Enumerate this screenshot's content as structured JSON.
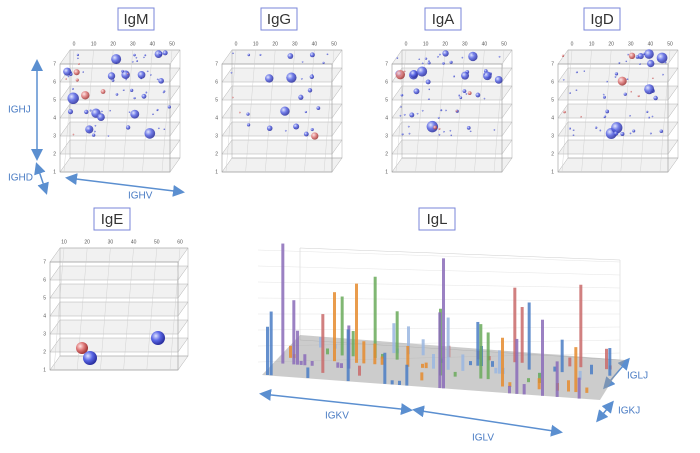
{
  "panels": [
    {
      "title": "IgM",
      "xticks": [
        0,
        10,
        20,
        30,
        40,
        50
      ],
      "zticks": [
        1,
        2,
        3,
        4,
        5,
        6,
        7
      ]
    },
    {
      "title": "IgG",
      "xticks": [
        0,
        10,
        20,
        30,
        40,
        50
      ],
      "zticks": [
        1,
        2,
        3,
        4,
        5,
        6,
        7
      ]
    },
    {
      "title": "IgA",
      "xticks": [
        0,
        10,
        20,
        30,
        40,
        50
      ],
      "zticks": [
        1,
        2,
        3,
        4,
        5,
        6,
        7
      ]
    },
    {
      "title": "IgD",
      "xticks": [
        0,
        10,
        20,
        30,
        40,
        50
      ],
      "zticks": [
        1,
        2,
        3,
        4,
        5,
        6,
        7
      ]
    },
    {
      "title": "IgE",
      "xticks": [
        10,
        20,
        30,
        40,
        50,
        60
      ],
      "zticks": [
        1,
        2,
        3,
        4,
        5,
        6,
        7
      ]
    }
  ],
  "igl": {
    "title": "IgL"
  },
  "axis_labels": {
    "ighj": "IGHJ",
    "ighd": "IGHD",
    "ighv": "IGHV",
    "igkv": "IGKV",
    "iglv": "IGLV",
    "iglj": "IGLJ",
    "igkj": "IGKJ"
  }
}
